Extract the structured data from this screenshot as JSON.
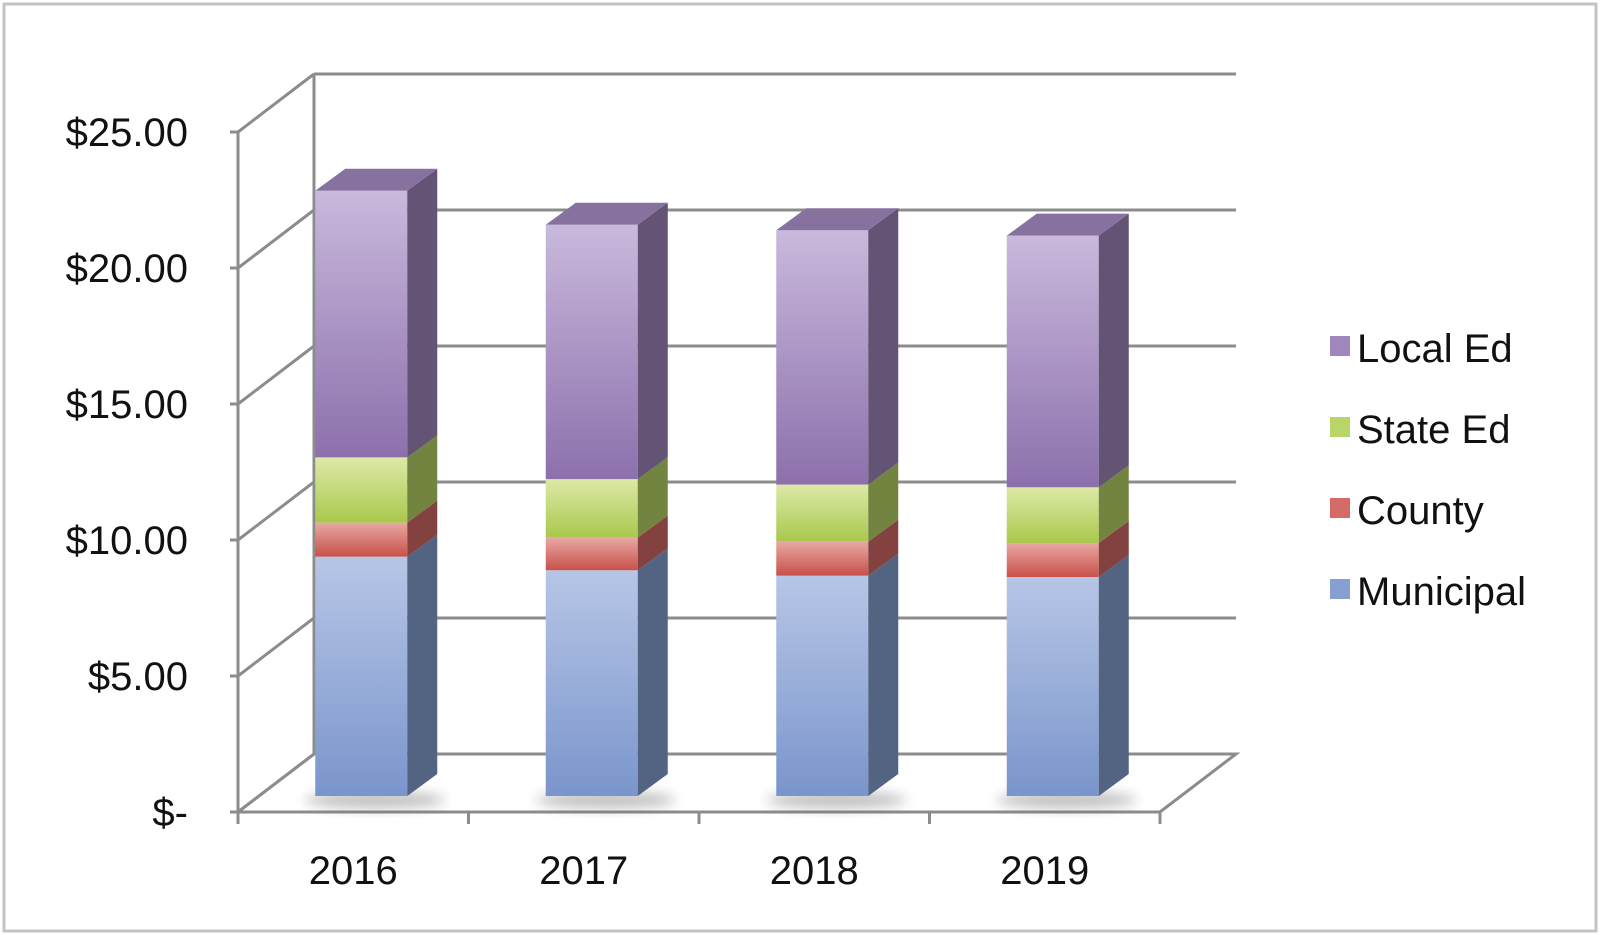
{
  "chart_data": {
    "type": "bar",
    "stacked": true,
    "three_d": true,
    "categories": [
      "2016",
      "2017",
      "2018",
      "2019"
    ],
    "series": [
      {
        "name": "Municipal",
        "values": [
          8.8,
          8.3,
          8.1,
          8.05
        ]
      },
      {
        "name": "County",
        "values": [
          1.25,
          1.2,
          1.25,
          1.25
        ]
      },
      {
        "name": "State Ed",
        "values": [
          2.4,
          2.15,
          2.1,
          2.05
        ]
      },
      {
        "name": "Local Ed",
        "values": [
          9.8,
          9.35,
          9.35,
          9.25
        ]
      }
    ],
    "y_ticks": [
      "$-",
      "$5.00",
      "$10.00",
      "$15.00",
      "$20.00",
      "$25.00"
    ],
    "ylim": [
      0,
      25
    ],
    "y_step": 5,
    "grid": true,
    "legend_position": "right",
    "legend_order": [
      "Local Ed",
      "State Ed",
      "County",
      "Municipal"
    ],
    "colors": {
      "Municipal": "#86a0d2",
      "County": "#d46b67",
      "State Ed": "#b9d468",
      "Local Ed": "#9f86bb",
      "gridline": "#8c8c8c",
      "frame": "#bfbfbf"
    }
  }
}
